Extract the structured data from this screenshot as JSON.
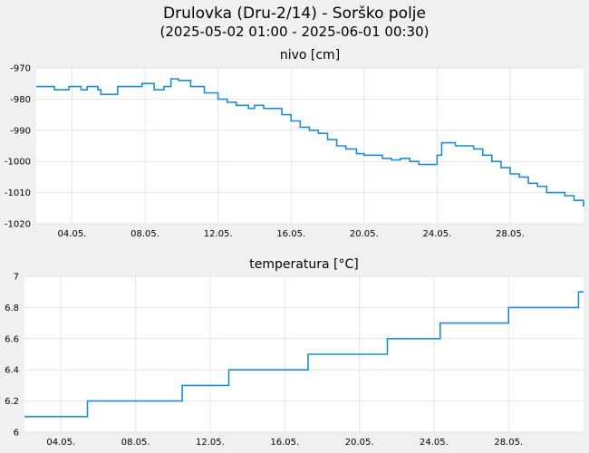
{
  "header": {
    "title": "Drulovka (Dru-2/14) - Sorško polje",
    "subtitle": "(2025-05-02 01:00 - 2025-06-01 00:30)"
  },
  "colors": {
    "line": "#1a8fd6",
    "grid": "#e6e6e6",
    "plot_bg": "#ffffff",
    "page_bg": "#f0f0f0"
  },
  "chart_data": [
    {
      "type": "line",
      "title": "nivo [cm]",
      "ylim": [
        -1020,
        -970
      ],
      "yticks": [
        -970,
        -980,
        -990,
        -1000,
        -1010,
        -1020
      ],
      "ytick_labels": [
        "-970",
        "-980",
        "-990",
        "-1000",
        "-1010",
        "-1020"
      ],
      "xlim": [
        "2025-05-02T01:00",
        "2025-06-01T00:30"
      ],
      "xticks": [
        "2025-05-04",
        "2025-05-08",
        "2025-05-12",
        "2025-05-16",
        "2025-05-20",
        "2025-05-24",
        "2025-05-28"
      ],
      "xtick_labels": [
        "04.05.",
        "08.05.",
        "12.05.",
        "16.05.",
        "20.05.",
        "24.05.",
        "28.05."
      ],
      "grid": true,
      "series": [
        {
          "x": [
            "2025-05-02T01:00",
            "2025-05-03T01:00",
            "2025-05-03T20:00",
            "2025-05-04T12:00",
            "2025-05-04T20:00",
            "2025-05-05T10:00",
            "2025-05-05T14:00",
            "2025-05-06T00:00",
            "2025-05-06T12:00",
            "2025-05-07T06:00",
            "2025-05-07T20:00",
            "2025-05-08T12:00",
            "2025-05-09T01:00",
            "2025-05-09T10:00",
            "2025-05-09T20:00",
            "2025-05-10T12:00",
            "2025-05-11T06:00",
            "2025-05-12T00:00",
            "2025-05-12T12:00",
            "2025-05-13T00:00",
            "2025-05-13T16:00",
            "2025-05-14T00:00",
            "2025-05-14T12:00",
            "2025-05-15T01:00",
            "2025-05-15T12:00",
            "2025-05-16T00:00",
            "2025-05-16T12:00",
            "2025-05-17T00:00",
            "2025-05-17T12:00",
            "2025-05-18T00:00",
            "2025-05-18T12:00",
            "2025-05-19T00:00",
            "2025-05-19T14:00",
            "2025-05-20T00:00",
            "2025-05-20T12:00",
            "2025-05-21T00:00",
            "2025-05-21T12:00",
            "2025-05-22T00:00",
            "2025-05-22T12:00",
            "2025-05-23T00:00",
            "2025-05-23T12:00",
            "2025-05-24T00:00",
            "2025-05-24T06:00",
            "2025-05-25T00:00",
            "2025-05-25T12:00",
            "2025-05-26T00:00",
            "2025-05-26T12:00",
            "2025-05-27T00:00",
            "2025-05-27T12:00",
            "2025-05-28T00:00",
            "2025-05-28T12:00",
            "2025-05-29T00:00",
            "2025-05-29T12:00",
            "2025-05-30T00:00",
            "2025-05-30T12:00",
            "2025-05-31T00:00",
            "2025-05-31T12:00",
            "2025-06-01T00:30"
          ],
          "y": [
            -976,
            -977,
            -976,
            -977,
            -976,
            -977,
            -978.5,
            -978.5,
            -976,
            -976,
            -975,
            -977,
            -976,
            -973.5,
            -974,
            -976,
            -978,
            -980,
            -981,
            -982,
            -983,
            -982,
            -983,
            -983,
            -985,
            -987,
            -989,
            -990,
            -991,
            -993,
            -995,
            -996,
            -997.5,
            -998,
            -998,
            -999,
            -999.5,
            -999,
            -1000,
            -1001,
            -1001,
            -998,
            -994,
            -995,
            -995,
            -996,
            -998,
            -1000,
            -1002,
            -1004,
            -1005,
            -1007,
            -1008,
            -1010,
            -1010,
            -1011,
            -1012.5,
            -1014.5
          ]
        }
      ]
    },
    {
      "type": "line",
      "title": "temperatura [°C]",
      "ylim": [
        6,
        7
      ],
      "yticks": [
        7,
        6.8,
        6.6,
        6.4,
        6.2,
        6
      ],
      "ytick_labels": [
        "7",
        "6.8",
        "6.6",
        "6.4",
        "6.2",
        "6"
      ],
      "xlim": [
        "2025-05-02T01:00",
        "2025-06-01T00:30"
      ],
      "xticks": [
        "2025-05-04",
        "2025-05-08",
        "2025-05-12",
        "2025-05-16",
        "2025-05-20",
        "2025-05-24",
        "2025-05-28"
      ],
      "xtick_labels": [
        "04.05.",
        "08.05.",
        "12.05.",
        "16.05.",
        "20.05.",
        "24.05.",
        "28.05."
      ],
      "grid": true,
      "series": [
        {
          "x": [
            "2025-05-02T01:00",
            "2025-05-05T10:00",
            "2025-05-10T12:00",
            "2025-05-13T00:00",
            "2025-05-17T06:00",
            "2025-05-21T12:00",
            "2025-05-24T08:00",
            "2025-05-28T00:00",
            "2025-05-31T18:00",
            "2025-06-01T00:30"
          ],
          "y": [
            6.1,
            6.2,
            6.3,
            6.4,
            6.5,
            6.6,
            6.7,
            6.8,
            6.9,
            6.9
          ]
        }
      ]
    }
  ]
}
